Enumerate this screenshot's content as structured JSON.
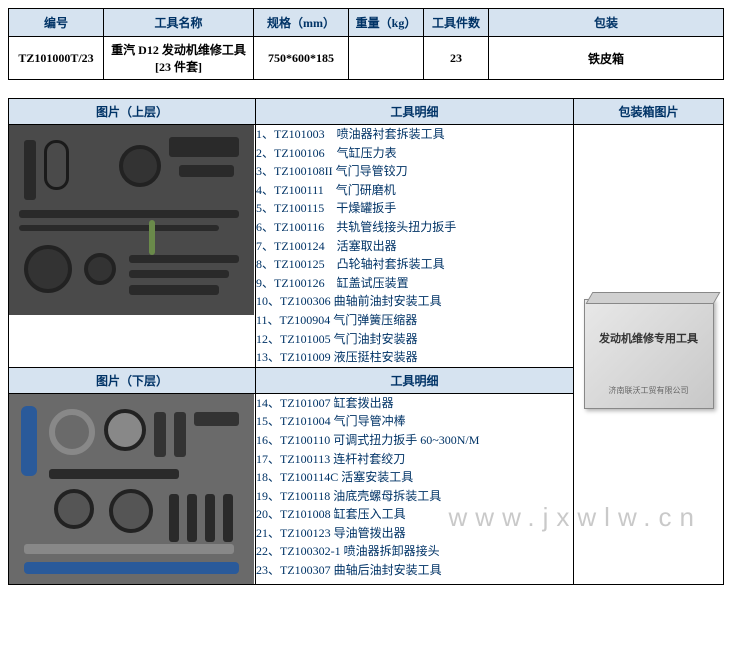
{
  "top": {
    "headers": [
      "编号",
      "工具名称",
      "规格（mm）",
      "重量（kg）",
      "工具件数",
      "包装"
    ],
    "row": {
      "code": "TZ101000T/23",
      "name": "重汽 D12 发动机维修工具 [23 件套]",
      "spec": "750*600*185",
      "weight": "",
      "count": "23",
      "package": "铁皮箱"
    }
  },
  "detail": {
    "img_upper_header": "图片（上层）",
    "img_lower_header": "图片（下层）",
    "tool_detail_header": "工具明细",
    "pkg_img_header": "包装箱图片",
    "pkg_box_text": "发动机维修专用工具",
    "pkg_box_sub": "济南联沃工贸有限公司",
    "upper_list": [
      "1、TZ101003　喷油器衬套拆装工具",
      "2、TZ100106　气缸压力表",
      "3、TZ100108II 气门导管铰刀",
      "4、TZ100111　气门研磨机",
      "5、TZ100115　干燥罐扳手",
      "6、TZ100116　共轨管线接头扭力扳手",
      "7、TZ100124　活塞取出器",
      "8、TZ100125　凸轮轴衬套拆装工具",
      "9、TZ100126　缸盖试压装置",
      "10、TZ100306 曲轴前油封安装工具",
      "11、TZ100904 气门弹簧压缩器",
      "12、TZ101005 气门油封安装器",
      "13、TZ101009 液压挺柱安装器"
    ],
    "lower_list": [
      "14、TZ101007 缸套拨出器",
      "15、TZ101004 气门导管冲棒",
      "16、TZ100110 可调式扭力扳手 60~300N/M",
      "17、TZ100113 连杆衬套绞刀",
      "18、TZ100114C 活塞安装工具",
      "19、TZ100118 油底壳螺母拆装工具",
      "20、TZ101008 缸套压入工具",
      "21、TZ100123 导油管拨出器",
      "22、TZ100302-1 喷油器拆卸器接头",
      "23、TZ100307 曲轴后油封安装工具"
    ]
  },
  "watermark": "www.jxwlw.cn",
  "colors": {
    "header_bg": "#d6e3f0",
    "header_text": "#003366",
    "list_text": "#003366",
    "img_bg": "#4a4a4a"
  }
}
